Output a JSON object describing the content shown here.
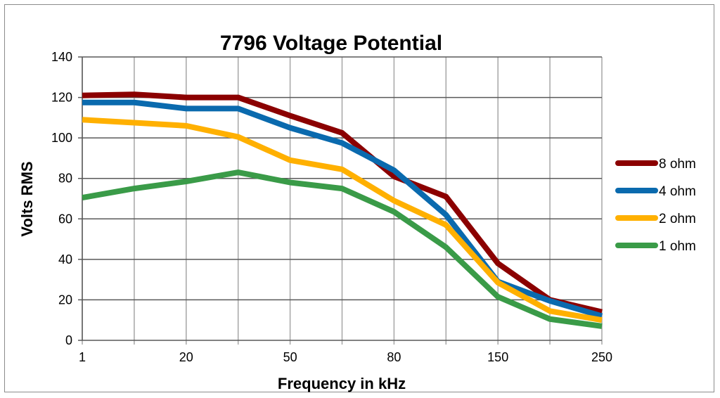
{
  "chart_data": {
    "type": "line",
    "title": "7796 Voltage Potential",
    "xlabel": "Frequency in kHz",
    "ylabel": "Volts RMS",
    "categories": [
      "1",
      "",
      "20",
      "",
      "50",
      "",
      "80",
      "",
      "150",
      "",
      "250"
    ],
    "ylim": [
      0,
      140
    ],
    "yticks": [
      0,
      20,
      40,
      60,
      80,
      100,
      120,
      140
    ],
    "grid": true,
    "legend_position": "right",
    "series": [
      {
        "name": "8 ohm",
        "color": "#8B0000",
        "values": [
          121,
          121.5,
          120,
          120,
          111,
          102.5,
          81,
          71,
          38,
          20,
          14
        ]
      },
      {
        "name": "4 ohm",
        "color": "#0A6AAE",
        "values": [
          117.5,
          117.5,
          114.5,
          114.5,
          105,
          97.5,
          84,
          62,
          29,
          19.5,
          12
        ]
      },
      {
        "name": "2 ohm",
        "color": "#FFB000",
        "values": [
          109,
          107.5,
          106,
          100.5,
          89,
          84.5,
          69,
          57,
          28.5,
          14.5,
          10
        ]
      },
      {
        "name": "1 ohm",
        "color": "#3A9B48",
        "values": [
          70.5,
          75,
          78.5,
          83,
          78,
          75,
          63.5,
          46,
          21.5,
          10.5,
          7
        ]
      }
    ]
  }
}
